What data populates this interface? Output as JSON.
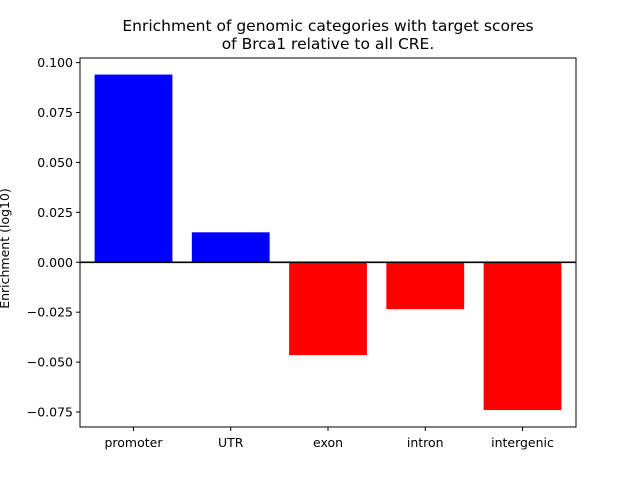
{
  "chart_data": {
    "type": "bar",
    "title_lines": [
      "Enrichment of genomic categories with target scores",
      "of Brca1 relative to all CRE."
    ],
    "xlabel": "",
    "ylabel": "Enrichment (log10)",
    "categories": [
      "promoter",
      "UTR",
      "exon",
      "intron",
      "intergenic"
    ],
    "values": [
      0.094,
      0.015,
      -0.0465,
      -0.0235,
      -0.074
    ],
    "bar_colors": [
      "#0000ff",
      "#0000ff",
      "#ff0000",
      "#ff0000",
      "#ff0000"
    ],
    "positive_color": "#0000ff",
    "negative_color": "#ff0000",
    "ylim": [
      -0.0825,
      0.1023
    ],
    "yticks": [
      0.1,
      0.075,
      0.05,
      0.025,
      0.0,
      -0.025,
      -0.05,
      -0.075
    ],
    "ytick_labels": [
      "0.100",
      "0.075",
      "0.050",
      "0.025",
      "0.000",
      "−0.025",
      "−0.050",
      "−0.075"
    ],
    "zero_line": true,
    "grid": false,
    "legend": "none"
  }
}
